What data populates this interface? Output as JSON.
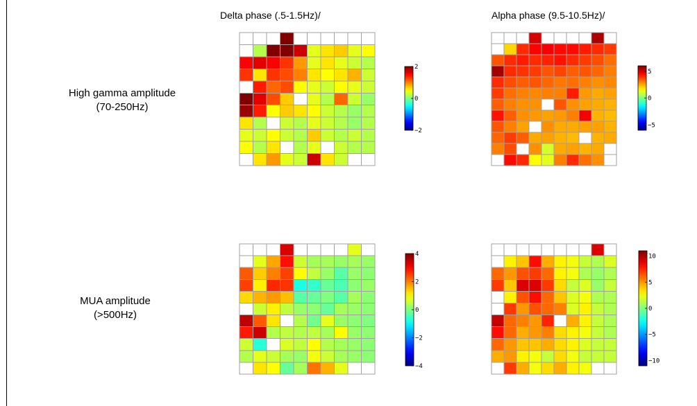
{
  "col_titles": [
    "Delta phase (.5-1.5Hz)/",
    "Alpha phase (9.5-10.5Hz)/"
  ],
  "row_labels": [
    {
      "line1": "High gamma amplitude",
      "line2": "(70-250Hz)"
    },
    {
      "line1": "MUA amplitude",
      "line2": "(>500Hz)"
    }
  ],
  "chart_data": [
    {
      "type": "heatmap",
      "title": "Delta phase (.5-1.5Hz)/",
      "row_label": "High gamma amplitude (70-250Hz)",
      "colorbar": {
        "min": -2,
        "max": 2,
        "ticks": [
          2,
          0,
          -2
        ]
      },
      "values": [
        [
          null,
          null,
          null,
          2.0,
          null,
          null,
          null,
          null,
          null,
          null
        ],
        [
          null,
          0.2,
          2.1,
          2.2,
          1.7,
          0.4,
          0.6,
          0.7,
          0.4,
          0.5
        ],
        [
          1.5,
          1.6,
          1.5,
          1.3,
          0.9,
          0.4,
          0.6,
          0.4,
          0.3,
          0.2
        ],
        [
          1.3,
          0.6,
          1.3,
          1.2,
          1.0,
          0.6,
          0.5,
          0.6,
          0.8,
          0.3
        ],
        [
          null,
          1.4,
          1.1,
          1.2,
          0.5,
          0.4,
          0.3,
          0.5,
          0.4,
          0.3
        ],
        [
          2.0,
          1.6,
          1.2,
          0.7,
          null,
          0.4,
          0.2,
          1.1,
          0.3,
          0.1
        ],
        [
          1.9,
          1.4,
          0.5,
          0.7,
          0.6,
          0.5,
          0.3,
          0.2,
          0.1,
          0.2
        ],
        [
          0.6,
          0.2,
          null,
          0.3,
          0.2,
          0.4,
          0.3,
          0.2,
          0.1,
          0.2
        ],
        [
          0.4,
          0.3,
          0.5,
          0.3,
          0.2,
          0.7,
          0.3,
          0.2,
          0.3,
          0.2
        ],
        [
          0.5,
          0.2,
          0.6,
          null,
          0.2,
          0.4,
          null,
          0.3,
          0.2,
          0.2
        ],
        [
          null,
          0.6,
          0.9,
          0.4,
          0.3,
          1.7,
          0.6,
          0.3,
          null,
          null
        ]
      ]
    },
    {
      "type": "heatmap",
      "title": "Alpha phase (9.5-10.5Hz)/",
      "row_label": "High gamma amplitude (70-250Hz)",
      "colorbar": {
        "min": -6,
        "max": 6,
        "ticks": [
          5,
          0,
          -5
        ]
      },
      "values": [
        [
          null,
          null,
          null,
          5.0,
          null,
          null,
          null,
          null,
          5.5,
          null
        ],
        [
          null,
          2.0,
          4.0,
          4.5,
          4.6,
          4.4,
          4.4,
          4.2,
          4.0,
          3.8
        ],
        [
          3.5,
          4.0,
          4.2,
          4.0,
          4.1,
          4.3,
          4.0,
          3.8,
          3.6,
          3.2
        ],
        [
          5.6,
          4.0,
          3.9,
          3.8,
          3.5,
          3.7,
          3.4,
          3.5,
          3.3,
          3.0
        ],
        [
          4.0,
          3.6,
          3.4,
          3.5,
          3.3,
          3.1,
          3.2,
          3.0,
          2.8,
          2.9
        ],
        [
          3.8,
          3.2,
          3.0,
          2.9,
          3.0,
          3.0,
          4.2,
          2.7,
          2.5,
          2.6
        ],
        [
          3.4,
          3.0,
          2.8,
          2.8,
          null,
          3.5,
          2.8,
          2.6,
          2.5,
          2.4
        ],
        [
          4.3,
          3.4,
          2.8,
          2.7,
          2.6,
          2.7,
          3.0,
          4.6,
          2.4,
          2.3
        ],
        [
          3.5,
          3.0,
          2.6,
          null,
          2.8,
          2.5,
          2.5,
          2.6,
          2.6,
          2.4
        ],
        [
          3.3,
          3.8,
          3.4,
          2.5,
          2.6,
          2.4,
          2.3,
          null,
          2.4,
          2.5
        ],
        [
          3.0,
          3.6,
          null,
          2.8,
          1.0,
          2.5,
          2.6,
          2.4,
          2.5,
          null
        ],
        [
          null,
          4.4,
          4.0,
          1.5,
          1.2,
          3.0,
          4.0,
          3.2,
          2.8,
          null
        ]
      ]
    },
    {
      "type": "heatmap",
      "title": "Delta phase (.5-1.5Hz)/",
      "row_label": "MUA amplitude (>500Hz)",
      "colorbar": {
        "min": -4,
        "max": 4,
        "ticks": [
          4,
          2,
          0,
          -2,
          -4
        ]
      },
      "values": [
        [
          null,
          null,
          null,
          3.3,
          null,
          null,
          null,
          null,
          0.8,
          null
        ],
        [
          null,
          0.8,
          1.7,
          2.9,
          0.6,
          0.3,
          0.3,
          0.2,
          0.3,
          0.2
        ],
        [
          2.3,
          1.4,
          2.0,
          2.5,
          1.0,
          0.5,
          0.2,
          -0.3,
          0.2,
          0.1
        ],
        [
          2.5,
          1.1,
          2.7,
          2.6,
          -0.8,
          -0.6,
          -0.2,
          -0.4,
          0.1,
          0.2
        ],
        [
          1.3,
          1.6,
          1.8,
          1.5,
          -0.3,
          -0.2,
          0.0,
          -0.3,
          0.3,
          0.1
        ],
        [
          null,
          0.6,
          1.1,
          0.5,
          0.2,
          0.1,
          -0.2,
          0.3,
          0.2,
          0.1
        ],
        [
          3.5,
          2.3,
          1.2,
          null,
          0.4,
          -0.1,
          0.8,
          0.2,
          0.1,
          0.0
        ],
        [
          2.8,
          3.4,
          0.4,
          0.5,
          0.4,
          0.5,
          0.3,
          1.0,
          0.2,
          0.1
        ],
        [
          0.6,
          -0.7,
          null,
          0.7,
          0.5,
          1.0,
          0.4,
          0.3,
          0.2,
          0.1
        ],
        [
          0.4,
          0.8,
          0.6,
          0.3,
          0.2,
          0.9,
          0.6,
          0.3,
          0.2,
          0.1
        ],
        [
          null,
          1.2,
          1.0,
          -0.2,
          0.3,
          2.1,
          1.6,
          0.8,
          null,
          null
        ]
      ]
    },
    {
      "type": "heatmap",
      "title": "Alpha phase (9.5-10.5Hz)/",
      "row_label": "MUA amplitude (>500Hz)",
      "colorbar": {
        "min": -11,
        "max": 11,
        "ticks": [
          10,
          5,
          0,
          -5,
          -10
        ]
      },
      "values": [
        [
          null,
          null,
          null,
          null,
          null,
          null,
          null,
          null,
          9.0,
          null
        ],
        [
          null,
          3.0,
          4.0,
          8.0,
          4.5,
          3.0,
          2.5,
          1.5,
          1.0,
          2.0
        ],
        [
          6.0,
          5.0,
          6.5,
          7.0,
          6.0,
          3.0,
          2.5,
          1.0,
          0.5,
          1.0
        ],
        [
          7.0,
          4.0,
          9.0,
          9.0,
          7.0,
          3.5,
          1.5,
          2.0,
          0.5,
          1.5
        ],
        [
          null,
          3.0,
          6.5,
          8.0,
          6.0,
          4.0,
          2.0,
          2.5,
          1.0,
          1.0
        ],
        [
          null,
          7.0,
          5.0,
          6.5,
          6.0,
          5.5,
          2.0,
          3.0,
          1.5,
          1.0
        ],
        [
          9.5,
          6.0,
          5.5,
          5.0,
          7.5,
          null,
          4.5,
          3.0,
          1.5,
          1.0
        ],
        [
          8.0,
          6.0,
          4.5,
          5.0,
          5.5,
          3.5,
          3.0,
          2.5,
          1.5,
          1.0
        ],
        [
          6.0,
          5.0,
          4.0,
          4.0,
          4.5,
          3.5,
          3.0,
          2.0,
          1.5,
          1.5
        ],
        [
          4.5,
          5.0,
          3.0,
          2.5,
          1.5,
          3.5,
          2.5,
          1.5,
          1.5,
          1.5
        ],
        [
          null,
          7.0,
          4.5,
          2.5,
          3.5,
          4.5,
          3.0,
          2.5,
          null,
          null
        ]
      ]
    }
  ]
}
